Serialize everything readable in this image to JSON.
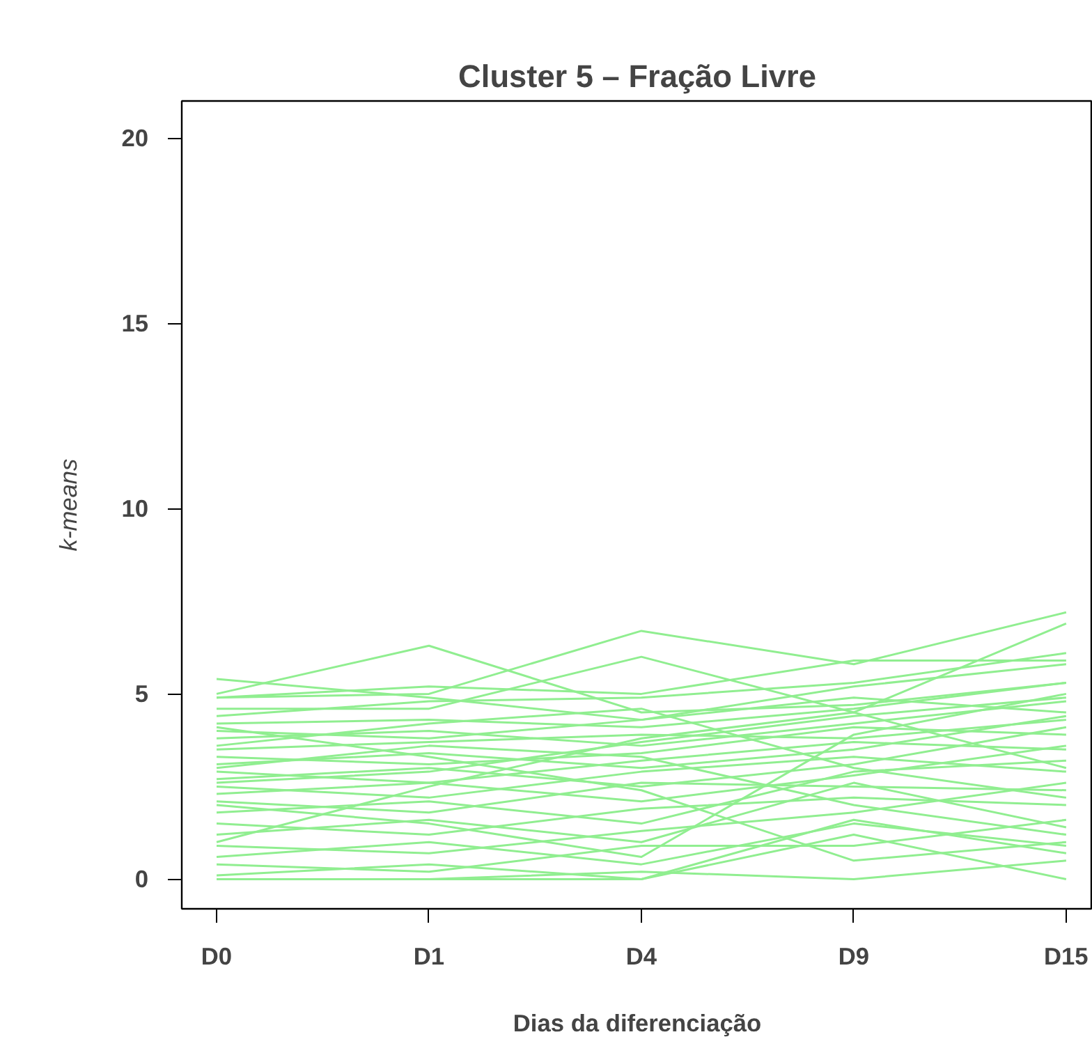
{
  "chart_data": {
    "type": "line",
    "title": "Cluster 5 – Fração Livre",
    "xlabel": "Dias da diferenciação",
    "ylabel": "k-means",
    "categories": [
      "D0",
      "D1",
      "D4",
      "D9",
      "D15"
    ],
    "ylim": [
      -0.8,
      21
    ],
    "yticks": [
      0,
      5,
      10,
      15,
      20
    ],
    "grid": false,
    "line_style": "solid",
    "marker": "none",
    "series": [
      {
        "color": "#90ee90",
        "values": [
          5.4,
          4.9,
          4.3,
          5.2,
          5.8
        ]
      },
      {
        "color": "#90ee90",
        "values": [
          5.0,
          6.3,
          4.5,
          4.7,
          5.3
        ]
      },
      {
        "color": "#90ee90",
        "values": [
          4.9,
          5.0,
          6.7,
          5.8,
          7.2
        ]
      },
      {
        "color": "#90ee90",
        "values": [
          4.6,
          4.6,
          6.0,
          4.5,
          6.9
        ]
      },
      {
        "color": "#90ee90",
        "values": [
          4.9,
          5.2,
          5.0,
          5.9,
          5.9
        ]
      },
      {
        "color": "#90ee90",
        "values": [
          4.4,
          4.8,
          4.9,
          5.3,
          6.1
        ]
      },
      {
        "color": "#90ee90",
        "values": [
          4.2,
          4.3,
          4.1,
          4.6,
          5.3
        ]
      },
      {
        "color": "#90ee90",
        "values": [
          4.0,
          3.8,
          4.3,
          4.9,
          4.5
        ]
      },
      {
        "color": "#90ee90",
        "values": [
          3.8,
          4.0,
          3.6,
          4.2,
          4.8
        ]
      },
      {
        "color": "#90ee90",
        "values": [
          3.5,
          3.7,
          3.9,
          3.8,
          4.3
        ]
      },
      {
        "color": "#90ee90",
        "values": [
          3.3,
          3.1,
          3.4,
          4.1,
          3.9
        ]
      },
      {
        "color": "#90ee90",
        "values": [
          3.1,
          3.4,
          3.0,
          3.5,
          4.4
        ]
      },
      {
        "color": "#90ee90",
        "values": [
          2.9,
          2.6,
          3.2,
          3.7,
          3.5
        ]
      },
      {
        "color": "#90ee90",
        "values": [
          2.7,
          3.0,
          2.5,
          3.1,
          4.1
        ]
      },
      {
        "color": "#90ee90",
        "values": [
          2.5,
          2.2,
          2.9,
          3.3,
          2.9
        ]
      },
      {
        "color": "#90ee90",
        "values": [
          2.3,
          2.6,
          2.1,
          2.8,
          3.6
        ]
      },
      {
        "color": "#90ee90",
        "values": [
          2.1,
          1.8,
          2.6,
          2.5,
          2.4
        ]
      },
      {
        "color": "#90ee90",
        "values": [
          1.8,
          2.1,
          1.5,
          2.9,
          3.2
        ]
      },
      {
        "color": "#90ee90",
        "values": [
          1.5,
          1.2,
          1.9,
          2.2,
          2.0
        ]
      },
      {
        "color": "#90ee90",
        "values": [
          1.2,
          1.6,
          1.0,
          2.6,
          1.4
        ]
      },
      {
        "color": "#90ee90",
        "values": [
          0.9,
          0.7,
          1.3,
          1.8,
          2.6
        ]
      },
      {
        "color": "#90ee90",
        "values": [
          0.6,
          1.0,
          0.4,
          1.5,
          0.9
        ]
      },
      {
        "color": "#90ee90",
        "values": [
          0.4,
          0.2,
          0.9,
          0.9,
          1.6
        ]
      },
      {
        "color": "#90ee90",
        "values": [
          0.0,
          0.0,
          0.2,
          0.0,
          0.5
        ]
      },
      {
        "color": "#90ee90",
        "values": [
          0.0,
          0.0,
          0.0,
          1.2,
          0.0
        ]
      },
      {
        "color": "#90ee90",
        "values": [
          0.1,
          0.4,
          0.0,
          1.6,
          0.7
        ]
      },
      {
        "color": "#90ee90",
        "values": [
          3.0,
          3.6,
          3.3,
          2.0,
          1.2
        ]
      },
      {
        "color": "#90ee90",
        "values": [
          4.1,
          3.3,
          2.4,
          0.5,
          1.0
        ]
      },
      {
        "color": "#90ee90",
        "values": [
          1.0,
          2.5,
          3.8,
          4.5,
          3.0
        ]
      },
      {
        "color": "#90ee90",
        "values": [
          2.0,
          1.5,
          0.6,
          3.9,
          5.0
        ]
      },
      {
        "color": "#90ee90",
        "values": [
          3.6,
          4.2,
          4.6,
          3.0,
          2.2
        ]
      },
      {
        "color": "#90ee90",
        "values": [
          2.6,
          2.9,
          3.7,
          4.4,
          4.9
        ]
      }
    ]
  }
}
